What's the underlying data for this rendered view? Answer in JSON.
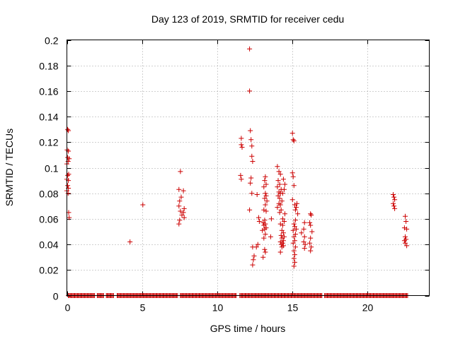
{
  "chart_data": {
    "type": "scatter",
    "title": "Day 123 of 2019, SRMTID for receiver cedu",
    "xlabel": "GPS time / hours",
    "ylabel": "SRMTID / TECUs",
    "xlim": [
      0,
      24.1
    ],
    "ylim": [
      0,
      0.2
    ],
    "xticks": [
      0,
      5,
      10,
      15,
      20
    ],
    "xtick_labels": [
      "0",
      "5",
      "10",
      "15",
      "20"
    ],
    "yticks": [
      0,
      0.02,
      0.04,
      0.06,
      0.08,
      0.1,
      0.12,
      0.14,
      0.16,
      0.18,
      0.2
    ],
    "ytick_labels": [
      "0",
      "0.02",
      "0.04",
      "0.06",
      "0.08",
      "0.1",
      "0.12",
      "0.14",
      "0.16",
      "0.18",
      "0.2"
    ],
    "grid": true,
    "marker": "+",
    "color": "#cc0000",
    "zero_baseline": {
      "x_start": 0.1,
      "x_end": 22.7,
      "step": 0.06,
      "gaps": [
        [
          1.9,
          2.0
        ],
        [
          2.5,
          2.6
        ],
        [
          3.15,
          3.3
        ],
        [
          7.4,
          7.5
        ],
        [
          11.3,
          11.45
        ],
        [
          17.0,
          17.1
        ]
      ]
    },
    "series": [
      {
        "name": "SRMTID",
        "points": [
          [
            0.05,
            0.13
          ],
          [
            0.1,
            0.129
          ],
          [
            0.02,
            0.114
          ],
          [
            0.1,
            0.113
          ],
          [
            0.05,
            0.108
          ],
          [
            0.08,
            0.105
          ],
          [
            0.0,
            0.103
          ],
          [
            0.15,
            0.107
          ],
          [
            0.05,
            0.094
          ],
          [
            0.12,
            0.095
          ],
          [
            0.0,
            0.091
          ],
          [
            0.1,
            0.09
          ],
          [
            0.05,
            0.086
          ],
          [
            0.1,
            0.084
          ],
          [
            0.0,
            0.082
          ],
          [
            0.08,
            0.08
          ],
          [
            0.12,
            0.065
          ],
          [
            0.15,
            0.061
          ],
          [
            4.2,
            0.042
          ],
          [
            5.05,
            0.071
          ],
          [
            7.55,
            0.097
          ],
          [
            7.45,
            0.083
          ],
          [
            7.75,
            0.082
          ],
          [
            7.6,
            0.077
          ],
          [
            7.5,
            0.074
          ],
          [
            7.8,
            0.068
          ],
          [
            7.45,
            0.07
          ],
          [
            7.55,
            0.066
          ],
          [
            7.75,
            0.065
          ],
          [
            7.65,
            0.063
          ],
          [
            7.8,
            0.061
          ],
          [
            7.5,
            0.059
          ],
          [
            7.45,
            0.056
          ],
          [
            11.6,
            0.123
          ],
          [
            11.6,
            0.118
          ],
          [
            11.65,
            0.116
          ],
          [
            11.55,
            0.094
          ],
          [
            11.6,
            0.091
          ],
          [
            12.15,
            0.193
          ],
          [
            12.15,
            0.16
          ],
          [
            12.2,
            0.129
          ],
          [
            12.25,
            0.122
          ],
          [
            12.3,
            0.117
          ],
          [
            12.3,
            0.109
          ],
          [
            12.35,
            0.105
          ],
          [
            12.25,
            0.092
          ],
          [
            12.2,
            0.088
          ],
          [
            12.3,
            0.08
          ],
          [
            12.15,
            0.067
          ],
          [
            12.35,
            0.038
          ],
          [
            12.45,
            0.031
          ],
          [
            12.4,
            0.028
          ],
          [
            12.35,
            0.024
          ],
          [
            12.65,
            0.079
          ],
          [
            12.75,
            0.061
          ],
          [
            12.8,
            0.058
          ],
          [
            12.7,
            0.04
          ],
          [
            12.6,
            0.038
          ],
          [
            13.2,
            0.093
          ],
          [
            13.15,
            0.09
          ],
          [
            13.25,
            0.087
          ],
          [
            13.1,
            0.085
          ],
          [
            13.2,
            0.08
          ],
          [
            13.25,
            0.078
          ],
          [
            13.15,
            0.076
          ],
          [
            13.3,
            0.074
          ],
          [
            13.2,
            0.071
          ],
          [
            13.1,
            0.067
          ],
          [
            13.25,
            0.066
          ],
          [
            13.15,
            0.059
          ],
          [
            13.05,
            0.057
          ],
          [
            13.2,
            0.056
          ],
          [
            13.1,
            0.055
          ],
          [
            13.25,
            0.053
          ],
          [
            13.15,
            0.052
          ],
          [
            13.0,
            0.051
          ],
          [
            13.2,
            0.048
          ],
          [
            13.1,
            0.045
          ],
          [
            13.15,
            0.036
          ],
          [
            13.2,
            0.034
          ],
          [
            13.05,
            0.03
          ],
          [
            13.6,
            0.06
          ],
          [
            13.55,
            0.046
          ],
          [
            14.0,
            0.101
          ],
          [
            14.1,
            0.097
          ],
          [
            14.2,
            0.095
          ],
          [
            14.05,
            0.09
          ],
          [
            14.15,
            0.087
          ],
          [
            14.0,
            0.085
          ],
          [
            14.25,
            0.083
          ],
          [
            14.1,
            0.081
          ],
          [
            14.2,
            0.08
          ],
          [
            14.05,
            0.078
          ],
          [
            14.15,
            0.076
          ],
          [
            14.3,
            0.074
          ],
          [
            14.1,
            0.072
          ],
          [
            14.2,
            0.071
          ],
          [
            14.0,
            0.069
          ],
          [
            14.25,
            0.067
          ],
          [
            14.15,
            0.065
          ],
          [
            14.35,
            0.06
          ],
          [
            14.45,
            0.058
          ],
          [
            14.5,
            0.064
          ],
          [
            14.4,
            0.091
          ],
          [
            14.5,
            0.087
          ],
          [
            14.45,
            0.083
          ],
          [
            14.35,
            0.08
          ],
          [
            14.2,
            0.056
          ],
          [
            14.35,
            0.055
          ],
          [
            14.3,
            0.051
          ],
          [
            14.4,
            0.049
          ],
          [
            14.25,
            0.047
          ],
          [
            14.45,
            0.046
          ],
          [
            14.3,
            0.045
          ],
          [
            14.4,
            0.043
          ],
          [
            14.2,
            0.042
          ],
          [
            14.35,
            0.041
          ],
          [
            14.25,
            0.04
          ],
          [
            14.4,
            0.039
          ],
          [
            14.3,
            0.038
          ],
          [
            14.2,
            0.034
          ],
          [
            15.0,
            0.127
          ],
          [
            15.05,
            0.122
          ],
          [
            15.1,
            0.121
          ],
          [
            15.0,
            0.096
          ],
          [
            15.05,
            0.093
          ],
          [
            15.1,
            0.086
          ],
          [
            15.0,
            0.075
          ],
          [
            15.15,
            0.071
          ],
          [
            15.25,
            0.069
          ],
          [
            15.2,
            0.067
          ],
          [
            15.3,
            0.072
          ],
          [
            15.35,
            0.064
          ],
          [
            15.2,
            0.059
          ],
          [
            15.1,
            0.056
          ],
          [
            15.15,
            0.054
          ],
          [
            15.25,
            0.052
          ],
          [
            15.05,
            0.051
          ],
          [
            15.2,
            0.048
          ],
          [
            15.1,
            0.046
          ],
          [
            15.15,
            0.043
          ],
          [
            15.05,
            0.041
          ],
          [
            15.2,
            0.038
          ],
          [
            15.1,
            0.035
          ],
          [
            15.15,
            0.032
          ],
          [
            15.1,
            0.029
          ],
          [
            15.15,
            0.026
          ],
          [
            15.1,
            0.023
          ],
          [
            15.6,
            0.049
          ],
          [
            15.8,
            0.057
          ],
          [
            15.75,
            0.052
          ],
          [
            15.8,
            0.046
          ],
          [
            15.75,
            0.042
          ],
          [
            15.85,
            0.04
          ],
          [
            15.8,
            0.037
          ],
          [
            16.2,
            0.064
          ],
          [
            16.25,
            0.063
          ],
          [
            16.15,
            0.057
          ],
          [
            16.2,
            0.055
          ],
          [
            16.3,
            0.05
          ],
          [
            16.2,
            0.045
          ],
          [
            16.15,
            0.041
          ],
          [
            16.25,
            0.038
          ],
          [
            16.2,
            0.035
          ],
          [
            21.7,
            0.079
          ],
          [
            21.75,
            0.077
          ],
          [
            21.8,
            0.075
          ],
          [
            21.7,
            0.072
          ],
          [
            21.75,
            0.07
          ],
          [
            21.8,
            0.068
          ],
          [
            22.5,
            0.062
          ],
          [
            22.55,
            0.058
          ],
          [
            22.45,
            0.053
          ],
          [
            22.6,
            0.052
          ],
          [
            22.5,
            0.046
          ],
          [
            22.55,
            0.044
          ],
          [
            22.45,
            0.043
          ],
          [
            22.5,
            0.041
          ],
          [
            22.6,
            0.039
          ]
        ]
      }
    ]
  }
}
